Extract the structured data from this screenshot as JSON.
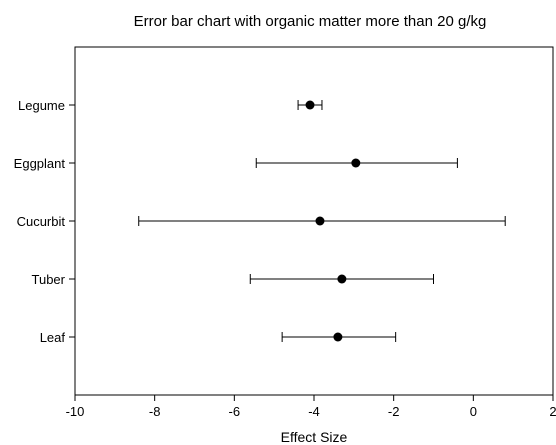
{
  "chart_data": {
    "type": "scatter",
    "title": "Error bar chart with organic matter more than 20 g/kg",
    "xlabel": "Effect Size",
    "ylabel": "",
    "xlim": [
      -10,
      2
    ],
    "x_ticks": [
      "-10",
      "-8",
      "-6",
      "-4",
      "-2",
      "0",
      "2"
    ],
    "grid": false,
    "legend": "none",
    "categories": [
      "Legume",
      "Eggplant",
      "Cucurbit",
      "Tuber",
      "Leaf"
    ],
    "points": [
      {
        "category": "Legume",
        "value": -4.1,
        "lower": -4.4,
        "upper": -3.8
      },
      {
        "category": "Eggplant",
        "value": -2.95,
        "lower": -5.45,
        "upper": -0.4
      },
      {
        "category": "Cucurbit",
        "value": -3.85,
        "lower": -8.4,
        "upper": 0.8
      },
      {
        "category": "Tuber",
        "value": -3.3,
        "lower": -5.6,
        "upper": -1.0
      },
      {
        "category": "Leaf",
        "value": -3.4,
        "lower": -4.8,
        "upper": -1.95
      }
    ],
    "colors": {
      "marker": "#000000",
      "errorbar": "#000000",
      "axis": "#000000"
    }
  }
}
